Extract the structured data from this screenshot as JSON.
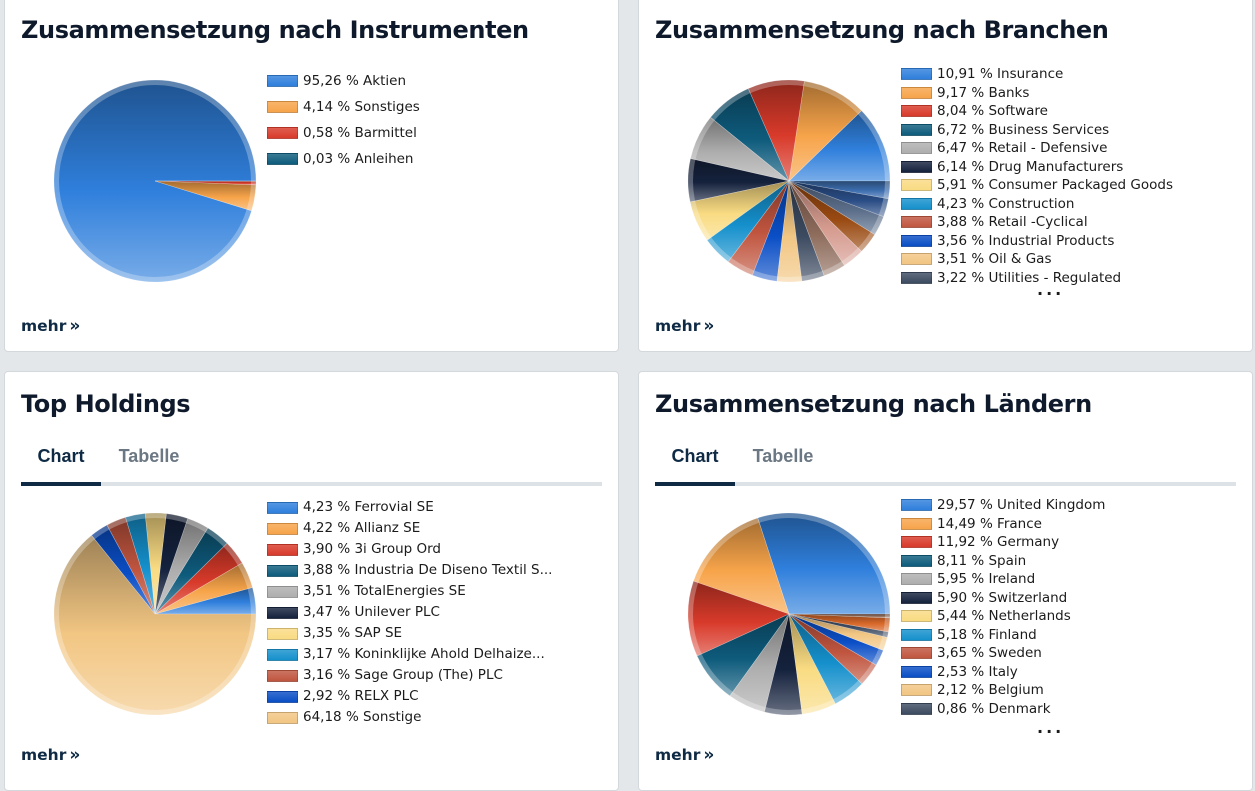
{
  "more_label": "mehr",
  "more_chevron": "»",
  "colors": {
    "blue": "#2f7fdc",
    "orange": "#f7a44a",
    "red": "#d83a2a",
    "teal": "#0e5b7c",
    "gray": "#aeaeae",
    "navy": "#15223d",
    "yellow": "#f9db82",
    "cyan": "#1590cc",
    "brick": "#c0553f",
    "royal": "#0a4ec6",
    "sand": "#f2c683",
    "slate": "#3c4a60"
  },
  "cards": [
    {
      "title": "Zusammensetzung nach Instrumenten",
      "show_more_dots": false,
      "chart_data": {
        "type": "pie",
        "title": "Zusammensetzung nach Instrumenten",
        "legend_position": "right",
        "slices": [
          {
            "label": "95,26 % Aktien",
            "name": "Aktien",
            "value": 95.26,
            "color": "#2f7fdc"
          },
          {
            "label": "4,14 % Sonstiges",
            "name": "Sonstiges",
            "value": 4.14,
            "color": "#f7a44a"
          },
          {
            "label": "0,58 % Barmittel",
            "name": "Barmittel",
            "value": 0.58,
            "color": "#d83a2a"
          },
          {
            "label": "0,03 % Anleihen",
            "name": "Anleihen",
            "value": 0.03,
            "color": "#0e5b7c"
          }
        ]
      }
    },
    {
      "title": "Zusammensetzung nach Branchen",
      "show_more_dots": true,
      "more_dots": "...",
      "chart_data": {
        "type": "pie",
        "title": "Zusammensetzung nach Branchen",
        "legend_position": "right",
        "slices": [
          {
            "label": "10,91 % Insurance",
            "name": "Insurance",
            "value": 10.91,
            "color": "#2f7fdc"
          },
          {
            "label": "9,17 % Banks",
            "name": "Banks",
            "value": 9.17,
            "color": "#f7a44a"
          },
          {
            "label": "8,04 % Software",
            "name": "Software",
            "value": 8.04,
            "color": "#d83a2a"
          },
          {
            "label": "6,72 % Business Services",
            "name": "Business Services",
            "value": 6.72,
            "color": "#0e5b7c"
          },
          {
            "label": "6,47 % Retail - Defensive",
            "name": "Retail - Defensive",
            "value": 6.47,
            "color": "#aeaeae"
          },
          {
            "label": "6,14 % Drug Manufacturers",
            "name": "Drug Manufacturers",
            "value": 6.14,
            "color": "#15223d"
          },
          {
            "label": "5,91 % Consumer Packaged Goods",
            "name": "Consumer Packaged Goods",
            "value": 5.91,
            "color": "#f9db82"
          },
          {
            "label": "4,23 % Construction",
            "name": "Construction",
            "value": 4.23,
            "color": "#1590cc"
          },
          {
            "label": "3,88 % Retail -Cyclical",
            "name": "Retail -Cyclical",
            "value": 3.88,
            "color": "#c0553f"
          },
          {
            "label": "3,56 % Industrial Products",
            "name": "Industrial Products",
            "value": 3.56,
            "color": "#0a4ec6"
          },
          {
            "label": "3,51 % Oil & Gas",
            "name": "Oil & Gas",
            "value": 3.51,
            "color": "#f2c683"
          },
          {
            "label": "3,22 % Utilities - Regulated",
            "name": "Utilities - Regulated",
            "value": 3.22,
            "color": "#3c4a60"
          }
        ],
        "unlisted_slices": [
          {
            "value": 3.2,
            "color": "#8d6b5b"
          },
          {
            "value": 3.1,
            "color": "#d59a8e"
          },
          {
            "value": 3.0,
            "color": "#9a4a12"
          },
          {
            "value": 2.8,
            "color": "#5b6e8a"
          },
          {
            "value": 2.6,
            "color": "#2a4d86"
          },
          {
            "value": 2.5,
            "color": "#3e6fb0"
          }
        ]
      }
    },
    {
      "title": "Top Holdings",
      "tabs": [
        {
          "label": "Chart",
          "active": true
        },
        {
          "label": "Tabelle",
          "active": false
        }
      ],
      "show_more_dots": false,
      "chart_data": {
        "type": "pie",
        "title": "Top Holdings",
        "legend_position": "right",
        "slices": [
          {
            "label": "4,23 % Ferrovial SE",
            "name": "Ferrovial SE",
            "value": 4.23,
            "color": "#2f7fdc"
          },
          {
            "label": "4,22 % Allianz SE",
            "name": "Allianz SE",
            "value": 4.22,
            "color": "#f7a44a"
          },
          {
            "label": "3,90 % 3i Group Ord",
            "name": "3i Group Ord",
            "value": 3.9,
            "color": "#d83a2a"
          },
          {
            "label": "3,88 % Industria De Diseno Textil S...",
            "name": "Industria De Diseno Textil S...",
            "value": 3.88,
            "color": "#0e5b7c"
          },
          {
            "label": "3,51 % TotalEnergies SE",
            "name": "TotalEnergies SE",
            "value": 3.51,
            "color": "#aeaeae"
          },
          {
            "label": "3,47 % Unilever PLC",
            "name": "Unilever PLC",
            "value": 3.47,
            "color": "#15223d"
          },
          {
            "label": "3,35 % SAP SE",
            "name": "SAP SE",
            "value": 3.35,
            "color": "#f9db82"
          },
          {
            "label": "3,17 % Koninklijke Ahold Delhaize...",
            "name": "Koninklijke Ahold Delhaize...",
            "value": 3.17,
            "color": "#1590cc"
          },
          {
            "label": "3,16 % Sage Group (The) PLC",
            "name": "Sage Group (The) PLC",
            "value": 3.16,
            "color": "#c0553f"
          },
          {
            "label": "2,92 % RELX PLC",
            "name": "RELX PLC",
            "value": 2.92,
            "color": "#0a4ec6"
          },
          {
            "label": "64,18 % Sonstige",
            "name": "Sonstige",
            "value": 64.18,
            "color": "#f2c683"
          }
        ]
      }
    },
    {
      "title": "Zusammensetzung nach Ländern",
      "tabs": [
        {
          "label": "Chart",
          "active": true
        },
        {
          "label": "Tabelle",
          "active": false
        }
      ],
      "show_more_dots": true,
      "more_dots": "...",
      "chart_data": {
        "type": "pie",
        "title": "Zusammensetzung nach Ländern",
        "legend_position": "right",
        "slices": [
          {
            "label": "29,57 % United Kingdom",
            "name": "United Kingdom",
            "value": 29.57,
            "color": "#2f7fdc"
          },
          {
            "label": "14,49 % France",
            "name": "France",
            "value": 14.49,
            "color": "#f7a44a"
          },
          {
            "label": "11,92 % Germany",
            "name": "Germany",
            "value": 11.92,
            "color": "#d83a2a"
          },
          {
            "label": "8,11 % Spain",
            "name": "Spain",
            "value": 8.11,
            "color": "#0e5b7c"
          },
          {
            "label": "5,95 % Ireland",
            "name": "Ireland",
            "value": 5.95,
            "color": "#aeaeae"
          },
          {
            "label": "5,90 % Switzerland",
            "name": "Switzerland",
            "value": 5.9,
            "color": "#15223d"
          },
          {
            "label": "5,44 % Netherlands",
            "name": "Netherlands",
            "value": 5.44,
            "color": "#f9db82"
          },
          {
            "label": "5,18 % Finland",
            "name": "Finland",
            "value": 5.18,
            "color": "#1590cc"
          },
          {
            "label": "3,65 % Sweden",
            "name": "Sweden",
            "value": 3.65,
            "color": "#c0553f"
          },
          {
            "label": "2,53 % Italy",
            "name": "Italy",
            "value": 2.53,
            "color": "#0a4ec6"
          },
          {
            "label": "2,12 % Belgium",
            "name": "Belgium",
            "value": 2.12,
            "color": "#f2c683"
          },
          {
            "label": "0,86 % Denmark",
            "name": "Denmark",
            "value": 0.86,
            "color": "#3c4a60"
          }
        ],
        "unlisted_slices": [
          {
            "value": 2.2,
            "color": "#d9692a"
          },
          {
            "value": 0.6,
            "color": "#8d6b5b"
          }
        ]
      }
    }
  ]
}
